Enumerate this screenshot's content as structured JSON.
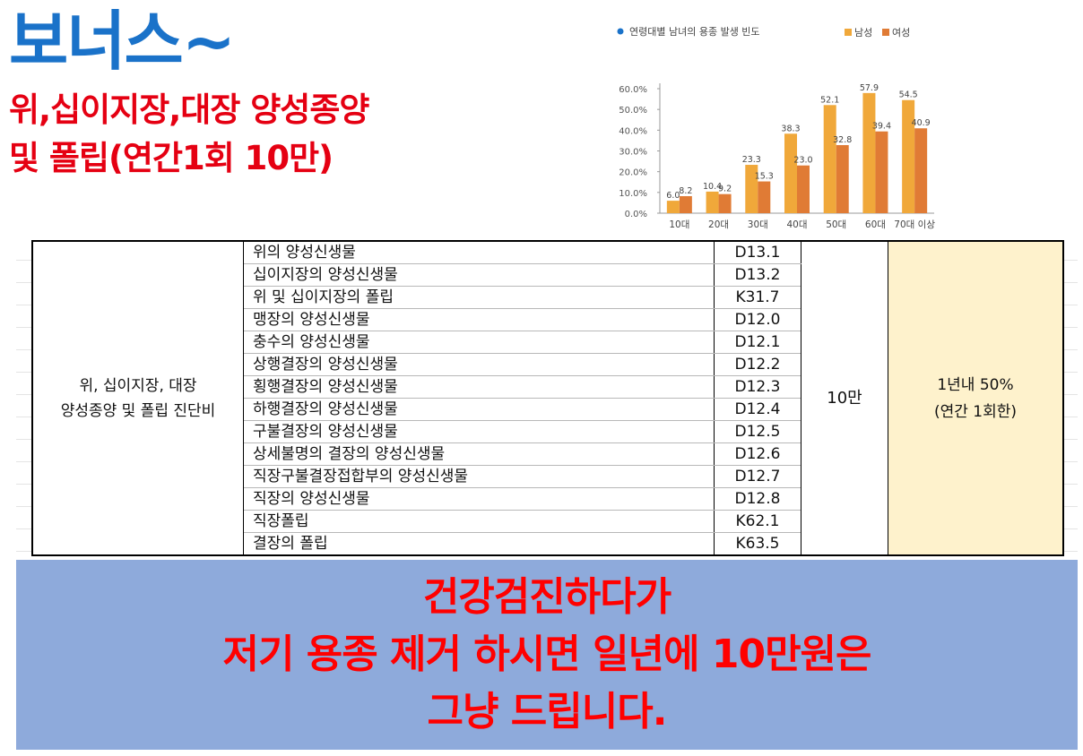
{
  "header": {
    "title": "보너스~",
    "subtitle_line1": "위,십이지장,대장 양성종양",
    "subtitle_line2": "및 폴립(연간1회 10만)"
  },
  "chart_data": {
    "type": "bar",
    "title": "연령대별 남녀의 용종 발생 빈도",
    "categories": [
      "10대",
      "20대",
      "30대",
      "40대",
      "50대",
      "60대",
      "70대 이상"
    ],
    "series": [
      {
        "name": "남성",
        "values": [
          6.0,
          10.4,
          23.3,
          38.3,
          52.1,
          57.9,
          54.5
        ],
        "color": "#f0a83a"
      },
      {
        "name": "여성",
        "values": [
          8.2,
          9.2,
          15.3,
          23.0,
          32.8,
          39.4,
          40.9
        ],
        "color": "#e07b35"
      }
    ],
    "yticks": [
      "0.0%",
      "10.0%",
      "20.0%",
      "30.0%",
      "40.0%",
      "50.0%",
      "60.0%"
    ],
    "ylim": [
      0,
      60
    ],
    "legend": "top-right",
    "title_bullet_color": "#1a72c9"
  },
  "table": {
    "category_line1": "위, 십이지장, 대장",
    "category_line2": "양성종양 및 폴립 진단비",
    "rows": [
      {
        "name": "위의 양성신생물",
        "code": "D13.1"
      },
      {
        "name": "십이지장의 양성신생물",
        "code": "D13.2"
      },
      {
        "name": "위 및 십이지장의 폴립",
        "code": "K31.7"
      },
      {
        "name": "맹장의 양성신생물",
        "code": "D12.0"
      },
      {
        "name": "충수의 양성신생물",
        "code": "D12.1"
      },
      {
        "name": "상행결장의 양성신생물",
        "code": "D12.2"
      },
      {
        "name": "횡행결장의 양성신생물",
        "code": "D12.3"
      },
      {
        "name": "하행결장의 양성신생물",
        "code": "D12.4"
      },
      {
        "name": "구불결장의 양성신생물",
        "code": "D12.5"
      },
      {
        "name": "상세불명의 결장의 양성신생물",
        "code": "D12.6"
      },
      {
        "name": "직장구불결장접합부의 양성신생물",
        "code": "D12.7"
      },
      {
        "name": "직장의 양성신생물",
        "code": "D12.8"
      },
      {
        "name": "직장폴립",
        "code": "K62.1"
      },
      {
        "name": "결장의 폴립",
        "code": "K63.5"
      }
    ],
    "amount": "10만",
    "limit_line1": "1년내 50%",
    "limit_line2": "(연간 1회한)",
    "limit_bg": "#fef2cc"
  },
  "banner": {
    "line1": "건강검진하다가",
    "line2": "저기 용종 제거 하시면 일년에 10만원은",
    "line3": "그냥 드립니다.",
    "bg_color": "#8eaadb",
    "text_color": "#ff0000"
  }
}
